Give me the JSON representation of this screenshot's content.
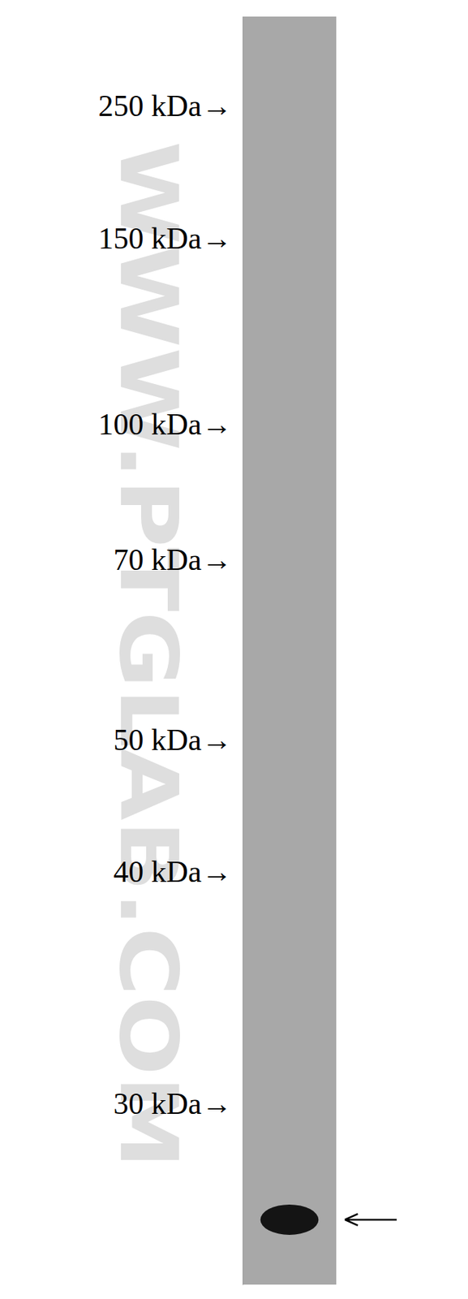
{
  "chart_data": {
    "type": "blot",
    "annotations": [
      "WWW.PTGLAB.COM"
    ],
    "categories": [
      null
    ],
    "values": [
      26
    ],
    "log": "y",
    "ylim": [
      24,
      353
    ],
    "yticks": [
      {
        "value": 250,
        "label": "250 kDa→"
      },
      {
        "value": 150,
        "label": "150 kDa→"
      },
      {
        "value": 100,
        "label": "100 kDa→"
      },
      {
        "value": 70,
        "label": "70 kDa→"
      },
      {
        "value": 50,
        "label": "50 kDa→"
      },
      {
        "value": 40,
        "label": "40 kDa→"
      },
      {
        "value": 30,
        "label": "30 kDa→"
      }
    ],
    "color": "#141414"
  }
}
